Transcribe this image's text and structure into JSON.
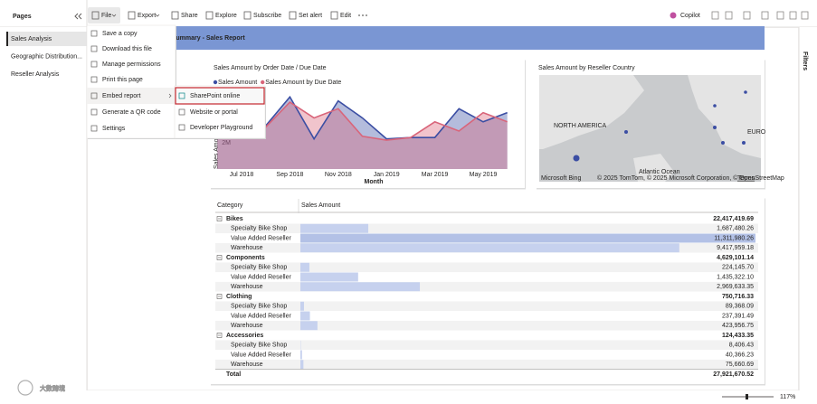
{
  "pages_pane": {
    "title": "Pages",
    "items": [
      "Sales Analysis",
      "Geographic Distribution...",
      "Reseller Analysis"
    ]
  },
  "toolbar": {
    "items": [
      "File",
      "Export",
      "Share",
      "Explore",
      "Subscribe",
      "Set alert",
      "Edit"
    ],
    "copilot": "Copilot"
  },
  "file_menu": {
    "items": [
      "Save a copy",
      "Download this file",
      "Manage permissions",
      "Print this page",
      "Embed report",
      "Generate a QR code",
      "Settings"
    ],
    "embed_submenu": [
      "SharePoint online",
      "Website or portal",
      "Developer Playground"
    ]
  },
  "report_title": "ve Summary - Sales Report",
  "chart_data": {
    "type": "line",
    "title": "Sales Amount by Order Date / Due Date",
    "x_label": "Month",
    "y_label": "Sales Amou",
    "categories": [
      null,
      "Jul 2018",
      null,
      "Sep 2018",
      null,
      "Nov 2018",
      null,
      "Jan 2019",
      null,
      "Mar 2019",
      null,
      "May 2019",
      null
    ],
    "series": [
      {
        "name": "Sales Amount",
        "color": "#3b4ea3",
        "values": [
          5200000,
          3000000,
          3300000,
          5500000,
          2300000,
          5200000,
          3900000,
          2300000,
          2400000,
          2400000,
          4600000,
          3600000,
          4300000
        ]
      },
      {
        "name": "Sales Amount by Due Date",
        "color": "#d9657a",
        "values": [
          4600000,
          3400000,
          3200000,
          5100000,
          3900000,
          4600000,
          2500000,
          2200000,
          2400000,
          3600000,
          2900000,
          4300000,
          3600000
        ]
      }
    ],
    "ylim": [
      0,
      6000000
    ],
    "yticks": [
      {
        "value": 2000000,
        "label": "2M"
      }
    ],
    "grid": false
  },
  "map": {
    "title": "Sales Amount by Reseller Country",
    "labels": [
      "NORTH AMERICA",
      "EURO",
      "Atlantic Ocean"
    ],
    "attribution": "© 2025 TomTom, © 2025 Microsoft Corporation, © OpenStreetMap",
    "terms": "Terms",
    "brand": "Microsoft Bing"
  },
  "table": {
    "columns": [
      "Category",
      "Sales Amount"
    ],
    "groups": [
      {
        "name": "Bikes",
        "value": 22417419.69,
        "value_label": "22,417,419.69",
        "items": [
          {
            "name": "Specialty Bike Shop",
            "value": 1687480.26,
            "value_label": "1,687,480.26"
          },
          {
            "name": "Value Added Reseller",
            "value": 11311980.26,
            "value_label": "11,311,980.26"
          },
          {
            "name": "Warehouse",
            "value": 9417959.18,
            "value_label": "9,417,959.18"
          }
        ]
      },
      {
        "name": "Components",
        "value": 4629101.14,
        "value_label": "4,629,101.14",
        "items": [
          {
            "name": "Specialty Bike Shop",
            "value": 224145.7,
            "value_label": "224,145.70"
          },
          {
            "name": "Value Added Reseller",
            "value": 1435322.1,
            "value_label": "1,435,322.10"
          },
          {
            "name": "Warehouse",
            "value": 2969633.35,
            "value_label": "2,969,633.35"
          }
        ]
      },
      {
        "name": "Clothing",
        "value": 750716.33,
        "value_label": "750,716.33",
        "items": [
          {
            "name": "Specialty Bike Shop",
            "value": 89368.09,
            "value_label": "89,368.09"
          },
          {
            "name": "Value Added Reseller",
            "value": 237391.49,
            "value_label": "237,391.49"
          },
          {
            "name": "Warehouse",
            "value": 423956.75,
            "value_label": "423,956.75"
          }
        ]
      },
      {
        "name": "Accessories",
        "value": 124433.35,
        "value_label": "124,433.35",
        "items": [
          {
            "name": "Specialty Bike Shop",
            "value": 8406.43,
            "value_label": "8,406.43"
          },
          {
            "name": "Value Added Reseller",
            "value": 40366.23,
            "value_label": "40,366.23"
          },
          {
            "name": "Warehouse",
            "value": 75660.69,
            "value_label": "75,660.69"
          }
        ]
      }
    ],
    "total": {
      "name": "Total",
      "value": 27921670.52,
      "value_label": "27,921,670.52"
    }
  },
  "filters_pane": {
    "title": "Filters"
  },
  "status_bar": {
    "zoom": "117%"
  },
  "watermark": "大数跨境"
}
